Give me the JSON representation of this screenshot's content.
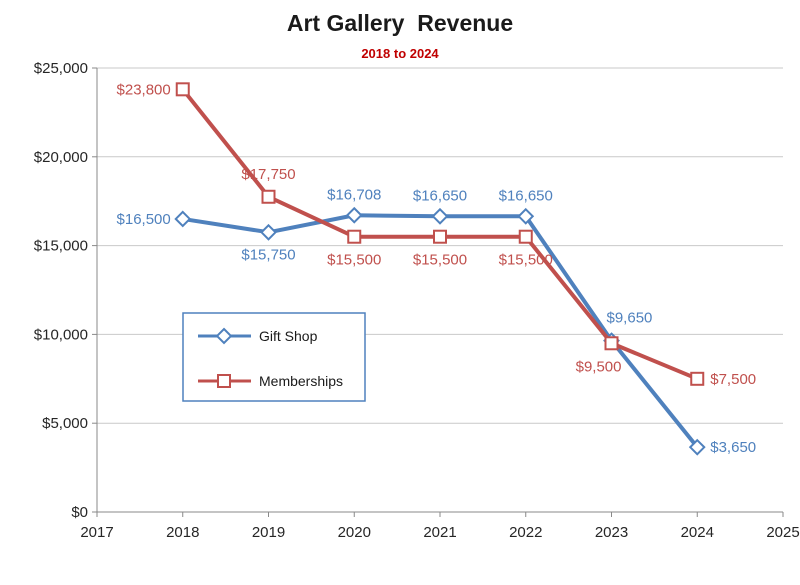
{
  "chart_data": {
    "type": "line",
    "title": "Art Gallery  Revenue",
    "subtitle": "2018 to 2024",
    "x": [
      2018,
      2019,
      2020,
      2021,
      2022,
      2023,
      2024
    ],
    "x_axis": {
      "min": 2017,
      "max": 2025,
      "ticks": [
        2017,
        2018,
        2019,
        2020,
        2021,
        2022,
        2023,
        2024,
        2025
      ]
    },
    "y_axis": {
      "min": 0,
      "max": 25000,
      "tick_step": 5000,
      "tick_labels": [
        "$0",
        "$5,000",
        "$10,000",
        "$15,000",
        "$20,000",
        "$25,000"
      ]
    },
    "grid": true,
    "legend": {
      "position": "middle-left",
      "border_color": "#4F81BD",
      "items": [
        "Gift Shop",
        "Memberships"
      ]
    },
    "series": [
      {
        "name": "Gift Shop",
        "color": "#4F81BD",
        "marker": "diamond",
        "values": [
          16500,
          15750,
          16708,
          16650,
          16650,
          9650,
          3650
        ],
        "labels": [
          "$16,500",
          "$15,750",
          "$16,708",
          "$16,650",
          "$16,650",
          "$9,650",
          "$3,650"
        ],
        "label_offsets": [
          {
            "dx": -12,
            "dy": 5,
            "anchor": "end"
          },
          {
            "dx": 0,
            "dy": 27,
            "anchor": "middle"
          },
          {
            "dx": 0,
            "dy": -16,
            "anchor": "middle"
          },
          {
            "dx": 0,
            "dy": -16,
            "anchor": "middle"
          },
          {
            "dx": 0,
            "dy": -16,
            "anchor": "middle"
          },
          {
            "dx": -5,
            "dy": -18,
            "anchor": "start"
          },
          {
            "dx": 13,
            "dy": 5,
            "anchor": "start"
          }
        ]
      },
      {
        "name": "Memberships",
        "color": "#C0504D",
        "marker": "square",
        "values": [
          23800,
          17750,
          15500,
          15500,
          15500,
          9500,
          7500
        ],
        "labels": [
          "$23,800",
          "$17,750",
          "$15,500",
          "$15,500",
          "$15,500",
          "$9,500",
          "$7,500"
        ],
        "label_offsets": [
          {
            "dx": -12,
            "dy": 5,
            "anchor": "end"
          },
          {
            "dx": 0,
            "dy": -18,
            "anchor": "middle"
          },
          {
            "dx": 0,
            "dy": 28,
            "anchor": "middle"
          },
          {
            "dx": 0,
            "dy": 28,
            "anchor": "middle"
          },
          {
            "dx": 0,
            "dy": 28,
            "anchor": "middle"
          },
          {
            "dx": 10,
            "dy": 28,
            "anchor": "end"
          },
          {
            "dx": 13,
            "dy": 5,
            "anchor": "start"
          }
        ]
      }
    ],
    "colors": {
      "gridline": "#C9C9C9",
      "axis": "#898989",
      "axis_text": "#262626",
      "legend_text": "#1a1a1a"
    }
  }
}
